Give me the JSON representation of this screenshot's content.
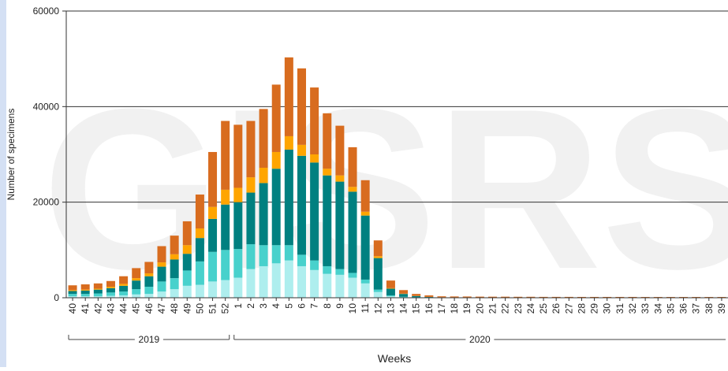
{
  "chart_data": {
    "type": "bar",
    "stacked": true,
    "watermark": "GISRS",
    "x_label": "Weeks",
    "y_label": "Number of specimens",
    "groups": [
      "2019",
      "2020"
    ],
    "categories": [
      "40",
      "41",
      "42",
      "43",
      "44",
      "45",
      "46",
      "47",
      "48",
      "49",
      "50",
      "51",
      "52",
      "1",
      "2",
      "3",
      "4",
      "5",
      "6",
      "7",
      "8",
      "9",
      "10",
      "11",
      "12",
      "13",
      "14",
      "15",
      "16",
      "17",
      "18",
      "19",
      "20",
      "21",
      "22",
      "23",
      "24",
      "25",
      "26",
      "27",
      "28",
      "29",
      "30",
      "31",
      "32",
      "33",
      "34",
      "35",
      "36",
      "37",
      "38",
      "39"
    ],
    "series": [
      {
        "color": "#aeeeee",
        "values": [
          300,
          300,
          300,
          400,
          500,
          700,
          800,
          1300,
          1800,
          2500,
          2700,
          3400,
          3700,
          4200,
          6000,
          6600,
          7200,
          7800,
          6600,
          5800,
          5000,
          4800,
          4200,
          3000,
          1200,
          300,
          100,
          50,
          30,
          20,
          20,
          20,
          15,
          15,
          15,
          10,
          10,
          10,
          10,
          10,
          10,
          10,
          10,
          10,
          10,
          10,
          10,
          10,
          10,
          10,
          10,
          10
        ]
      },
      {
        "color": "#48d1cc",
        "values": [
          500,
          500,
          600,
          700,
          800,
          1100,
          1500,
          2100,
          2300,
          3200,
          4900,
          6200,
          6300,
          6000,
          5200,
          4400,
          3800,
          3200,
          2400,
          2000,
          1600,
          1200,
          1000,
          800,
          500,
          200,
          100,
          50,
          30,
          20,
          20,
          20,
          15,
          15,
          15,
          10,
          10,
          10,
          10,
          10,
          10,
          10,
          10,
          10,
          10,
          10,
          10,
          10,
          10,
          10,
          10,
          10
        ]
      },
      {
        "color": "#008080",
        "values": [
          600,
          700,
          800,
          900,
          1200,
          1800,
          2200,
          3100,
          3900,
          3500,
          4900,
          6900,
          9500,
          9800,
          10800,
          13000,
          16000,
          20000,
          20700,
          20500,
          19000,
          18300,
          17000,
          13400,
          6600,
          1400,
          600,
          250,
          100,
          50,
          40,
          40,
          30,
          30,
          30,
          30,
          30,
          20,
          20,
          20,
          20,
          20,
          20,
          20,
          20,
          20,
          20,
          20,
          20,
          20,
          20,
          20
        ]
      },
      {
        "color": "#ffa500",
        "values": [
          200,
          200,
          200,
          300,
          400,
          500,
          600,
          900,
          1100,
          1800,
          2000,
          2500,
          3100,
          3000,
          3200,
          3200,
          3500,
          2800,
          2300,
          1700,
          1400,
          1300,
          1000,
          800,
          400,
          100,
          50,
          20,
          20,
          10,
          10,
          10,
          10,
          10,
          10,
          10,
          10,
          10,
          10,
          10,
          10,
          10,
          10,
          10,
          10,
          10,
          10,
          10,
          10,
          10,
          10,
          10
        ]
      },
      {
        "color": "#d86c1f",
        "values": [
          1000,
          1100,
          1100,
          1200,
          1600,
          2100,
          2400,
          3400,
          3900,
          5000,
          7100,
          11500,
          14400,
          13200,
          11800,
          12300,
          14100,
          16500,
          16000,
          14000,
          11600,
          10400,
          8300,
          6600,
          3300,
          1600,
          750,
          430,
          320,
          200,
          180,
          170,
          160,
          150,
          150,
          140,
          140,
          130,
          130,
          130,
          120,
          120,
          120,
          120,
          120,
          110,
          110,
          110,
          110,
          110,
          110,
          110
        ]
      }
    ],
    "ylim": [
      0,
      60000
    ],
    "yticks": [
      0,
      20000,
      40000,
      60000
    ],
    "grid": true
  }
}
